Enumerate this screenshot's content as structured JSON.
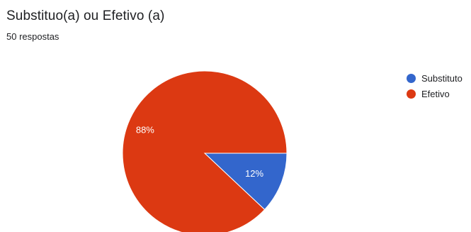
{
  "form_summary": {
    "question_title": "Substituo(a) ou Efetivo (a)",
    "response_count": "50 respostas"
  },
  "chart_data": {
    "type": "pie",
    "title": "Substituo(a) ou Efetivo (a)",
    "legend_position": "right",
    "series": [
      {
        "name": "Substituto",
        "value": 12,
        "label": "12%",
        "color": "#3366cc"
      },
      {
        "name": "Efetivo",
        "value": 88,
        "label": "88%",
        "color": "#dc3912"
      }
    ]
  },
  "colors": {
    "label_text": "#ffffff",
    "slice_border": "#ffffff"
  }
}
